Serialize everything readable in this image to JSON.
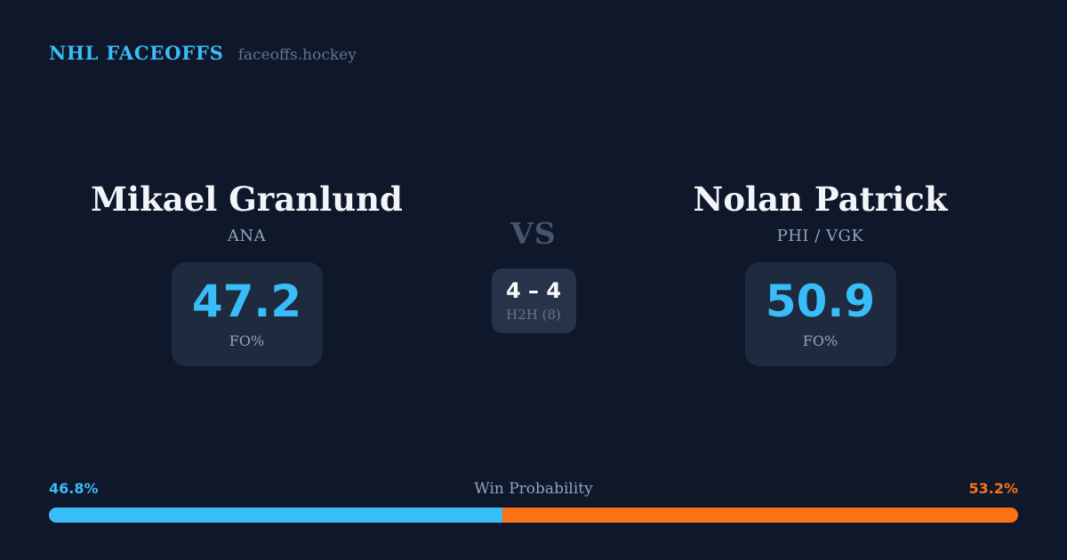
{
  "theme": {
    "background": "#0f172a",
    "stat_box_bg": "#1e2a3d",
    "h2h_box_bg": "#263349",
    "accent_blue": "#38bdf8",
    "accent_orange": "#f97316",
    "text_primary": "#f1f5f9",
    "text_muted": "#94a3b8",
    "text_dim": "#64748b",
    "vs_color": "#475569"
  },
  "header": {
    "title": "NHL FACEOFFS",
    "domain": "faceoffs.hockey"
  },
  "matchup": {
    "vs_label": "VS",
    "h2h": {
      "score": "4 – 4",
      "label": "H2H (8)"
    },
    "players": [
      {
        "name": "Mikael Granlund",
        "team": "ANA",
        "stat_value": "47.2",
        "stat_label": "FO%"
      },
      {
        "name": "Nolan Patrick",
        "team": "PHI / VGK",
        "stat_value": "50.9",
        "stat_label": "FO%"
      }
    ]
  },
  "win_probability": {
    "label": "Win Probability",
    "left_pct_text": "46.8%",
    "right_pct_text": "53.2%",
    "left_value": 46.8,
    "right_value": 53.2
  }
}
